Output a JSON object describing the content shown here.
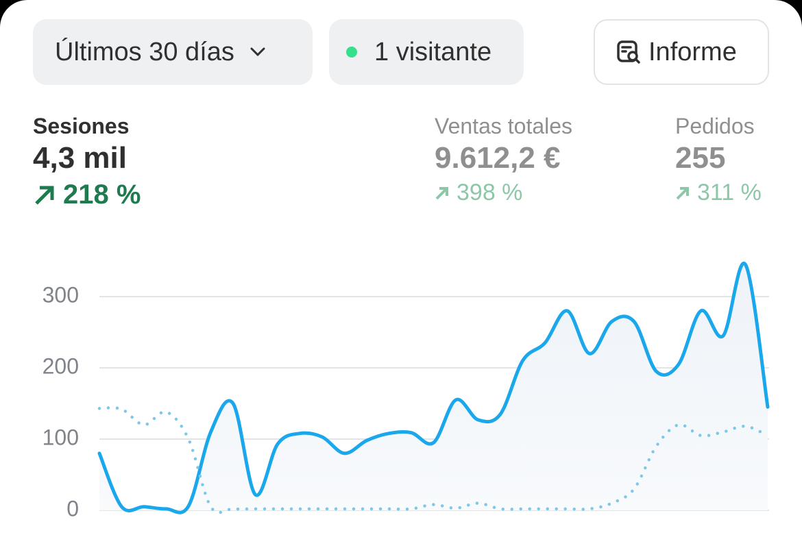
{
  "controls": {
    "period": "Últimos 30 días",
    "visitors": "1 visitante",
    "report": "Informe"
  },
  "metrics": [
    {
      "label": "Sesiones",
      "value": "4,3 mil",
      "change": "218 %"
    },
    {
      "label": "Ventas totales",
      "value": "9.612,2 €",
      "change": "398 %"
    },
    {
      "label": "Pedidos",
      "value": "255",
      "change": "311 %"
    }
  ],
  "chart_data": {
    "type": "line",
    "categories": [
      null,
      null,
      null,
      null,
      null,
      null,
      null,
      null,
      null,
      null,
      null,
      null,
      null,
      null,
      null,
      null,
      null,
      null,
      null,
      null,
      null,
      null,
      null,
      null,
      null,
      null,
      null,
      null,
      null,
      null,
      null
    ],
    "series": [
      {
        "color": "#1aa7ec",
        "style": "solid",
        "values": [
          80,
          5,
          5,
          2,
          6,
          110,
          150,
          22,
          93,
          108,
          103,
          80,
          98,
          108,
          109,
          95,
          155,
          127,
          135,
          210,
          235,
          280,
          220,
          265,
          265,
          195,
          205,
          280,
          245,
          345,
          145
        ]
      },
      {
        "color": "#7cc8e8",
        "style": "dotted",
        "values": [
          143,
          142,
          120,
          138,
          100,
          5,
          2,
          2,
          2,
          2,
          2,
          2,
          2,
          2,
          2,
          8,
          3,
          10,
          2,
          2,
          2,
          2,
          2,
          10,
          30,
          90,
          120,
          105,
          110,
          118,
          105
        ]
      }
    ],
    "ylim": [
      0,
      350
    ],
    "yticks": [
      0,
      100,
      200,
      300
    ],
    "grid": true
  }
}
